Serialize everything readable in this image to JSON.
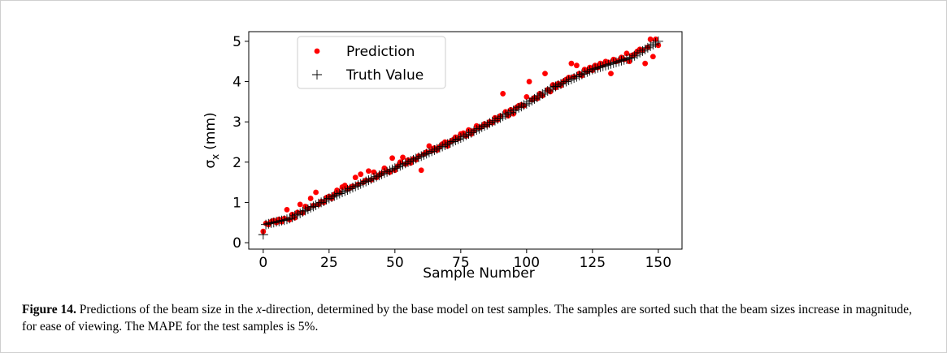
{
  "chart_data": {
    "type": "scatter",
    "x_label": "Sample Number",
    "y_label": {
      "symbol": "σ",
      "subscript": "x",
      "unit": "(mm)"
    },
    "xlim": [
      -5.5,
      159
    ],
    "ylim": [
      -0.16,
      5.24
    ],
    "xticks": [
      0,
      25,
      50,
      75,
      100,
      125,
      150
    ],
    "yticks": [
      0,
      1,
      2,
      3,
      4,
      5
    ],
    "legend": "upper left",
    "x": [
      0,
      1,
      2,
      3,
      4,
      5,
      6,
      7,
      8,
      9,
      10,
      11,
      12,
      13,
      14,
      15,
      16,
      17,
      18,
      19,
      20,
      21,
      22,
      23,
      24,
      25,
      26,
      27,
      28,
      29,
      30,
      31,
      32,
      33,
      34,
      35,
      36,
      37,
      38,
      39,
      40,
      41,
      42,
      43,
      44,
      45,
      46,
      47,
      48,
      49,
      50,
      51,
      52,
      53,
      54,
      55,
      56,
      57,
      58,
      59,
      60,
      61,
      62,
      63,
      64,
      65,
      66,
      67,
      68,
      69,
      70,
      71,
      72,
      73,
      74,
      75,
      76,
      77,
      78,
      79,
      80,
      81,
      82,
      83,
      84,
      85,
      86,
      87,
      88,
      89,
      90,
      91,
      92,
      93,
      94,
      95,
      96,
      97,
      98,
      99,
      100,
      101,
      102,
      103,
      104,
      105,
      106,
      107,
      108,
      109,
      110,
      111,
      112,
      113,
      114,
      115,
      116,
      117,
      118,
      119,
      120,
      121,
      122,
      123,
      124,
      125,
      126,
      127,
      128,
      129,
      130,
      131,
      132,
      133,
      134,
      135,
      136,
      137,
      138,
      139,
      140,
      141,
      142,
      143,
      144,
      145,
      146,
      147,
      148,
      149,
      150
    ],
    "series": [
      {
        "name": "Prediction",
        "color": "#ff0000",
        "marker": "circle",
        "values": [
          0.28,
          0.48,
          0.45,
          0.52,
          0.55,
          0.5,
          0.58,
          0.52,
          0.6,
          0.82,
          0.57,
          0.7,
          0.62,
          0.75,
          0.95,
          0.74,
          0.9,
          0.85,
          1.1,
          0.92,
          1.25,
          0.95,
          1.02,
          1.0,
          1.12,
          1.15,
          1.1,
          1.2,
          1.3,
          1.25,
          1.38,
          1.42,
          1.33,
          1.36,
          1.4,
          1.62,
          1.45,
          1.7,
          1.5,
          1.55,
          1.78,
          1.56,
          1.75,
          1.62,
          1.68,
          1.72,
          1.85,
          1.78,
          1.75,
          2.1,
          1.8,
          1.9,
          2.0,
          2.12,
          1.95,
          2.05,
          1.98,
          2.08,
          2.06,
          2.15,
          1.8,
          2.2,
          2.25,
          2.4,
          2.28,
          2.35,
          2.3,
          2.38,
          2.45,
          2.5,
          2.4,
          2.5,
          2.55,
          2.62,
          2.58,
          2.7,
          2.72,
          2.65,
          2.8,
          2.7,
          2.78,
          2.9,
          2.85,
          2.88,
          2.95,
          2.92,
          3.0,
          2.98,
          3.1,
          3.05,
          3.15,
          3.7,
          3.25,
          3.15,
          3.3,
          3.2,
          3.35,
          3.4,
          3.42,
          3.4,
          3.62,
          4.0,
          3.55,
          3.6,
          3.58,
          3.7,
          3.65,
          4.2,
          3.8,
          3.75,
          3.92,
          3.85,
          3.95,
          3.9,
          4.0,
          4.05,
          4.1,
          4.45,
          4.12,
          4.4,
          4.2,
          4.15,
          4.3,
          4.25,
          4.35,
          4.28,
          4.4,
          4.35,
          4.45,
          4.42,
          4.5,
          4.48,
          4.2,
          4.55,
          4.5,
          4.52,
          4.6,
          4.55,
          4.7,
          4.5,
          4.65,
          4.68,
          4.75,
          4.8,
          4.78,
          4.45,
          4.85,
          5.05,
          4.62,
          5.05,
          4.9
        ]
      },
      {
        "name": "Truth Value",
        "color": "#000000",
        "marker": "plus",
        "values": [
          0.2,
          0.45,
          0.47,
          0.49,
          0.5,
          0.52,
          0.53,
          0.55,
          0.56,
          0.58,
          0.6,
          0.63,
          0.67,
          0.7,
          0.73,
          0.77,
          0.8,
          0.83,
          0.87,
          0.9,
          0.93,
          0.97,
          1.0,
          1.03,
          1.07,
          1.1,
          1.13,
          1.16,
          1.19,
          1.22,
          1.25,
          1.28,
          1.31,
          1.34,
          1.37,
          1.4,
          1.43,
          1.46,
          1.49,
          1.52,
          1.55,
          1.58,
          1.61,
          1.64,
          1.67,
          1.7,
          1.73,
          1.76,
          1.79,
          1.82,
          1.85,
          1.88,
          1.91,
          1.94,
          1.97,
          2.0,
          2.03,
          2.06,
          2.09,
          2.12,
          2.15,
          2.18,
          2.21,
          2.24,
          2.27,
          2.3,
          2.33,
          2.36,
          2.39,
          2.42,
          2.45,
          2.48,
          2.51,
          2.54,
          2.57,
          2.6,
          2.63,
          2.67,
          2.7,
          2.73,
          2.77,
          2.8,
          2.83,
          2.87,
          2.9,
          2.93,
          2.97,
          3.0,
          3.03,
          3.07,
          3.1,
          3.14,
          3.17,
          3.21,
          3.24,
          3.28,
          3.31,
          3.35,
          3.38,
          3.42,
          3.45,
          3.49,
          3.53,
          3.57,
          3.61,
          3.65,
          3.69,
          3.73,
          3.77,
          3.81,
          3.85,
          3.88,
          3.91,
          3.94,
          3.97,
          4.0,
          4.03,
          4.06,
          4.09,
          4.12,
          4.15,
          4.18,
          4.21,
          4.24,
          4.27,
          4.3,
          4.32,
          4.34,
          4.36,
          4.38,
          4.4,
          4.42,
          4.44,
          4.46,
          4.48,
          4.5,
          4.52,
          4.54,
          4.56,
          4.58,
          4.6,
          4.64,
          4.68,
          4.72,
          4.76,
          4.8,
          4.84,
          4.88,
          4.92,
          4.96,
          5.0
        ]
      }
    ]
  },
  "caption": {
    "label": "Figure 14.",
    "text_before": "Predictions of the beam size in the",
    "italic": "x",
    "text_after": "-direction, determined by the base model on test samples. The samples are sorted such that the beam sizes increase in magnitude, for ease of viewing. The MAPE for the test samples is 5%."
  }
}
